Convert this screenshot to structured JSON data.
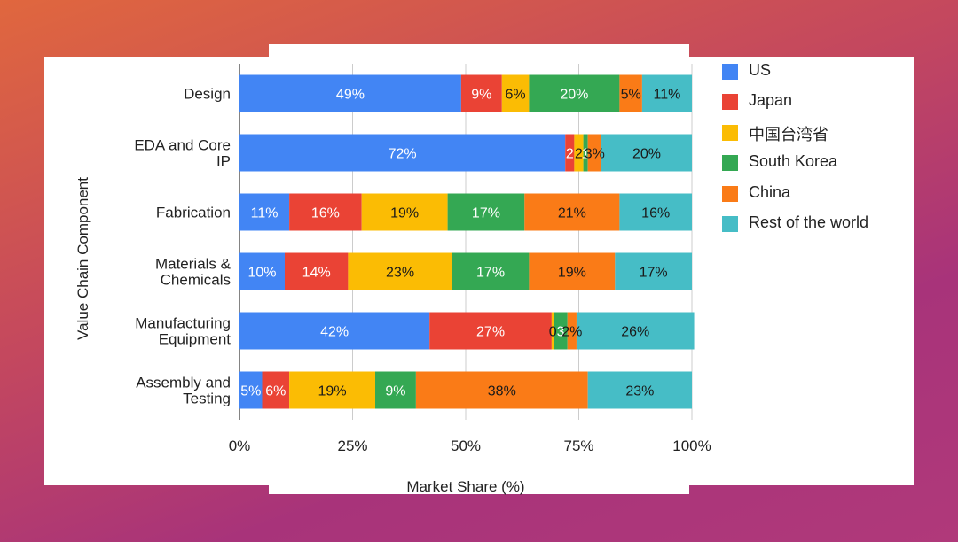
{
  "chart_data": {
    "type": "bar",
    "orientation": "horizontal",
    "stacked": true,
    "xlabel": "Market Share (%)",
    "ylabel": "Value Chain Component",
    "xlim": [
      0,
      100
    ],
    "x_ticks": [
      "0%",
      "25%",
      "50%",
      "75%",
      "100%"
    ],
    "legend_position": "right",
    "categories": [
      [
        "Design"
      ],
      [
        "EDA and Core",
        "IP"
      ],
      [
        "Fabrication"
      ],
      [
        "Materials &",
        "Chemicals"
      ],
      [
        "Manufacturing",
        "Equipment"
      ],
      [
        "Assembly and",
        "Testing"
      ]
    ],
    "series": [
      {
        "name": "US",
        "color": "#4285f4",
        "values": [
          49,
          72,
          11,
          10,
          42,
          5
        ],
        "labels": [
          "49%",
          "72%",
          "11%",
          "10%",
          "42%",
          "5%"
        ]
      },
      {
        "name": "Japan",
        "color": "#ea4335",
        "values": [
          9,
          2,
          16,
          14,
          27,
          6
        ],
        "labels": [
          "9%",
          "2",
          "16%",
          "14%",
          "27%",
          "6%"
        ]
      },
      {
        "name": "中国台湾省",
        "color": "#fbbc04",
        "values": [
          6,
          2,
          19,
          23,
          0.5,
          19
        ],
        "labels": [
          "6%",
          "2",
          "19%",
          "23%",
          "0",
          "19%"
        ]
      },
      {
        "name": "South Korea",
        "color": "#34a853",
        "values": [
          20,
          1,
          17,
          17,
          3,
          9
        ],
        "labels": [
          "20%",
          "1",
          "17%",
          "17%",
          "3",
          "9%"
        ]
      },
      {
        "name": "China",
        "color": "#fa7b17",
        "values": [
          5,
          3,
          21,
          19,
          2,
          38
        ],
        "labels": [
          "5%",
          "3%",
          "21%",
          "19%",
          "2%",
          "38%"
        ]
      },
      {
        "name": "Rest of the world",
        "color": "#46bdc6",
        "values": [
          11,
          20,
          16,
          17,
          26,
          23
        ],
        "labels": [
          "11%",
          "20%",
          "16%",
          "17%",
          "26%",
          "23%"
        ]
      }
    ]
  }
}
